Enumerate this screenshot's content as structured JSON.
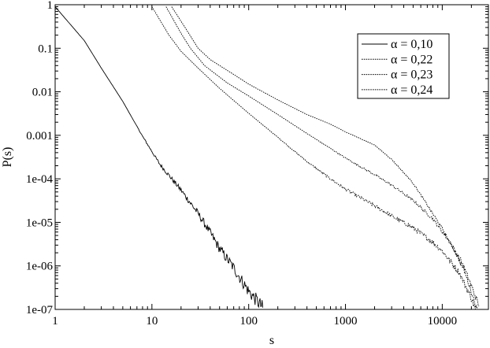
{
  "chart_data": {
    "type": "line",
    "title": "",
    "xlabel": "s",
    "ylabel": "P(s)",
    "xscale": "log",
    "yscale": "log",
    "xlim": [
      1,
      30000
    ],
    "ylim": [
      1e-07,
      1
    ],
    "grid": false,
    "legend_position": "top-right",
    "x_ticks": [
      {
        "value": 1,
        "label": "1"
      },
      {
        "value": 10,
        "label": "10"
      },
      {
        "value": 100,
        "label": "100"
      },
      {
        "value": 1000,
        "label": "1000"
      },
      {
        "value": 10000,
        "label": "10000"
      }
    ],
    "y_ticks": [
      {
        "value": 1,
        "label": "1"
      },
      {
        "value": 0.1,
        "label": "0.1"
      },
      {
        "value": 0.01,
        "label": "0.01"
      },
      {
        "value": 0.001,
        "label": "0.001"
      },
      {
        "value": 0.0001,
        "label": "1e-04"
      },
      {
        "value": 1e-05,
        "label": "1e-05"
      },
      {
        "value": 1e-06,
        "label": "1e-06"
      },
      {
        "value": 1e-07,
        "label": "1e-07"
      }
    ],
    "series": [
      {
        "name": "α = 0,10",
        "dash": "solid",
        "points": [
          [
            1,
            0.9
          ],
          [
            2,
            0.15
          ],
          [
            3,
            0.035
          ],
          [
            5,
            0.006
          ],
          [
            8,
            0.00095
          ],
          [
            12,
            0.00022
          ],
          [
            20,
            5.5e-05
          ],
          [
            30,
            1.6e-05
          ],
          [
            40,
            5.8e-06
          ],
          [
            50,
            2.5e-06
          ],
          [
            70,
            9e-07
          ],
          [
            100,
            2.6e-07
          ],
          [
            140,
            1.1e-07
          ]
        ],
        "noise": 0.22
      },
      {
        "name": "α = 0,22",
        "dash": "dotted",
        "points": [
          [
            10,
            0.9
          ],
          [
            15,
            0.2
          ],
          [
            20,
            0.085
          ],
          [
            30,
            0.035
          ],
          [
            50,
            0.012
          ],
          [
            100,
            0.0032
          ],
          [
            200,
            0.0009
          ],
          [
            400,
            0.00025
          ],
          [
            700,
            0.0001
          ],
          [
            1000,
            5.8e-05
          ],
          [
            2000,
            2.4e-05
          ],
          [
            3000,
            1.4e-05
          ],
          [
            5000,
            7.5e-06
          ],
          [
            8000,
            3.5e-06
          ],
          [
            10000,
            2.2e-06
          ],
          [
            15000,
            7e-07
          ],
          [
            20000,
            1.8e-07
          ],
          [
            22000,
            1e-07
          ]
        ],
        "noise": 0.12
      },
      {
        "name": "α = 0,23",
        "dash": "dotted",
        "points": [
          [
            14,
            0.9
          ],
          [
            20,
            0.22
          ],
          [
            25,
            0.1
          ],
          [
            35,
            0.04
          ],
          [
            60,
            0.016
          ],
          [
            100,
            0.008
          ],
          [
            200,
            0.003
          ],
          [
            400,
            0.0011
          ],
          [
            700,
            0.0005
          ],
          [
            1000,
            0.0003
          ],
          [
            2000,
            0.000125
          ],
          [
            3000,
            7.2e-05
          ],
          [
            5000,
            3.2e-05
          ],
          [
            8000,
            1.2e-05
          ],
          [
            12000,
            3.5e-06
          ],
          [
            16000,
            1.2e-06
          ],
          [
            20000,
            3.5e-07
          ],
          [
            24000,
            1.2e-07
          ]
        ],
        "noise": 0.1
      },
      {
        "name": "α = 0,24",
        "dash": "dotted",
        "points": [
          [
            16,
            0.9
          ],
          [
            22,
            0.3
          ],
          [
            30,
            0.1
          ],
          [
            40,
            0.055
          ],
          [
            70,
            0.025
          ],
          [
            100,
            0.015
          ],
          [
            200,
            0.0065
          ],
          [
            400,
            0.003
          ],
          [
            700,
            0.0018
          ],
          [
            1000,
            0.0012
          ],
          [
            2000,
            0.0006
          ],
          [
            3000,
            0.00028
          ],
          [
            5000,
            8e-05
          ],
          [
            7000,
            2.5e-05
          ],
          [
            10000,
            7.2e-06
          ],
          [
            13000,
            2.5e-06
          ],
          [
            17000,
            7.5e-07
          ],
          [
            20000,
            2.5e-07
          ],
          [
            23000,
            1e-07
          ]
        ],
        "noise": 0.08
      }
    ]
  }
}
